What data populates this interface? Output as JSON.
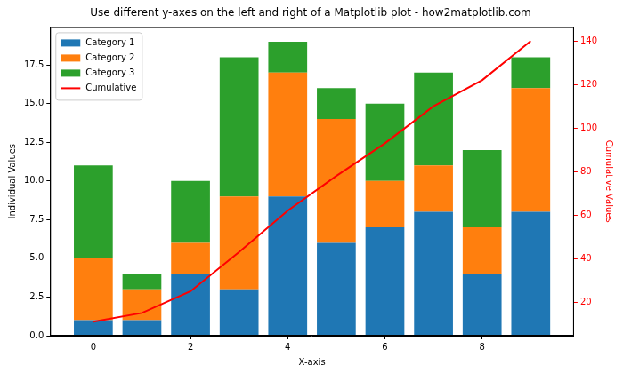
{
  "chart_data": {
    "type": "bar",
    "title": "Use different y-axes on the left and right of a Matplotlib plot - how2matplotlib.com",
    "x_label": "X-axis",
    "y_label": "Individual Values",
    "y2_label": "Cumulative Values",
    "x": [
      0,
      1,
      2,
      3,
      4,
      5,
      6,
      7,
      8,
      9
    ],
    "xlim": [
      -0.89,
      9.89
    ],
    "xticks": [
      0,
      2,
      4,
      6,
      8
    ],
    "ylim": [
      0,
      19.95
    ],
    "yticks": [
      {
        "value": 0,
        "label": "0.0"
      },
      2.5,
      {
        "value": 5,
        "label": "5.0"
      },
      7.5,
      {
        "value": 10,
        "label": "10.0"
      },
      12.5,
      {
        "value": 15,
        "label": "15.0"
      },
      17.5
    ],
    "y2lim": [
      4.55,
      146.45
    ],
    "y2ticks": [
      20,
      40,
      60,
      80,
      100,
      120,
      140
    ],
    "stacked": true,
    "grid": false,
    "legend": "upper left",
    "series": [
      {
        "name": "Category 1",
        "color": "#1f77b4",
        "values": [
          1,
          1,
          4,
          3,
          9,
          6,
          7,
          8,
          4,
          8
        ]
      },
      {
        "name": "Category 2",
        "color": "#ff7f0e",
        "values": [
          4,
          2,
          2,
          6,
          8,
          8,
          3,
          3,
          3,
          8
        ]
      },
      {
        "name": "Category 3",
        "color": "#2ca02c",
        "values": [
          6,
          1,
          4,
          9,
          2,
          2,
          5,
          6,
          5,
          2
        ]
      },
      {
        "name": "Cumulative",
        "type": "line",
        "axis": "y2",
        "color": "#ff0000",
        "values": [
          11,
          15,
          25,
          43,
          62,
          78,
          93,
          110,
          122,
          140
        ]
      }
    ]
  }
}
